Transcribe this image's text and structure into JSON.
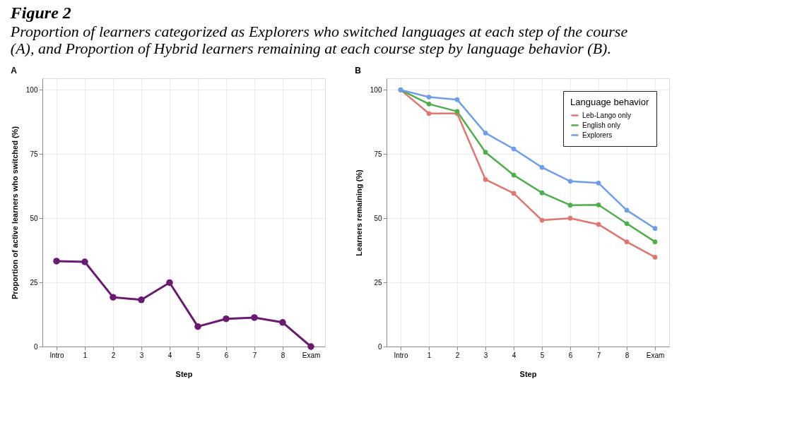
{
  "chart_data": [
    {
      "type": "line",
      "title": "A",
      "annotations": [
        "Figure 2",
        "Proportion of learners categorized as Explorers who switched languages at each step of the course (A), and Proportion of Hybrid learners remaining at each course step by language behavior (B)."
      ],
      "xlabel": "Step",
      "ylabel": "Proportion of active learners who switched (%)",
      "categories": [
        "Intro",
        "1",
        "2",
        "3",
        "4",
        "5",
        "6",
        "7",
        "8",
        "Exam"
      ],
      "ylim": [
        0,
        104.5
      ],
      "yticks": [
        0,
        25,
        50,
        75,
        100
      ],
      "grid": true,
      "marker": "circle",
      "line_style": "solid",
      "legend": false,
      "series": [
        {
          "color": "#6b1a72",
          "values": [
            33.3,
            33.0,
            19.2,
            18.2,
            24.9,
            7.8,
            10.8,
            11.3,
            9.4,
            0
          ]
        }
      ]
    },
    {
      "type": "line",
      "title": "B",
      "xlabel": "Step",
      "ylabel": "Learners remaining (%)",
      "legend_title": "Language behavior",
      "categories": [
        "Intro",
        "1",
        "2",
        "3",
        "4",
        "5",
        "6",
        "7",
        "8",
        "Exam"
      ],
      "ylim": [
        0,
        104.5
      ],
      "yticks": [
        0,
        25,
        50,
        75,
        100
      ],
      "grid": true,
      "marker": "circle",
      "line_style": "solid",
      "legend": "top right",
      "series": [
        {
          "name": "Leb-Lango only",
          "color": "#e0766e",
          "values": [
            100,
            90.8,
            90.8,
            65.1,
            59.7,
            49.2,
            50.0,
            47.6,
            40.8,
            34.8
          ]
        },
        {
          "name": "English only",
          "color": "#4daf4a",
          "values": [
            100,
            94.5,
            91.6,
            75.7,
            66.8,
            59.9,
            55.1,
            55.2,
            47.9,
            40.8
          ]
        },
        {
          "name": "Explorers",
          "color": "#6d9eeb",
          "values": [
            100,
            97.2,
            96.2,
            83.2,
            77.0,
            69.8,
            64.4,
            63.7,
            53.1,
            46.0
          ]
        }
      ]
    }
  ]
}
